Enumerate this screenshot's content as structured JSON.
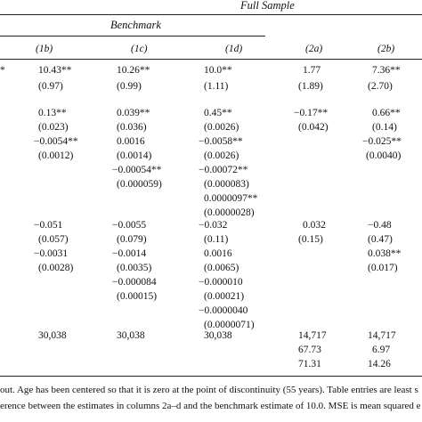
{
  "headers": {
    "full_sample": "Full Sample",
    "benchmark": "Benchmark",
    "columns": [
      "(1b)",
      "(1c)",
      "(1d)",
      "(2a)",
      "(2b)"
    ]
  },
  "left_fragment": "*",
  "rows": {
    "r1": [
      "10.43**",
      "10.26**",
      "10.0**",
      "1.77",
      "7.36**"
    ],
    "r2": [
      "(0.97)",
      "(0.99)",
      "(1.11)",
      "(1.89)",
      "(2.70)"
    ],
    "r3": [
      "0.13**",
      "0.039**",
      "0.45**",
      "−0.17**",
      "0.66**"
    ],
    "r4": [
      "(0.023)",
      "(0.036)",
      "(0.0026)",
      "(0.042)",
      "(0.14)"
    ],
    "r5": [
      "−0.0054**",
      "0.0016",
      "−0.0058**",
      "",
      "−0.025**"
    ],
    "r6": [
      "(0.0012)",
      "(0.0014)",
      "(0.0026)",
      "",
      "(0.0040)"
    ],
    "r7": [
      "",
      "−0.00054**",
      "−0.00072**",
      "",
      ""
    ],
    "r8": [
      "",
      "(0.000059)",
      "(0.000083)",
      "",
      ""
    ],
    "r9": [
      "",
      "",
      "0.0000097**",
      "",
      ""
    ],
    "r10": [
      "",
      "",
      "(0.0000028)",
      "",
      ""
    ],
    "r11": [
      "−0.051",
      "−0.0055",
      "−0.032",
      "0.032",
      "−0.48"
    ],
    "r12": [
      "(0.057)",
      "(0.079)",
      "(0.11)",
      "(0.15)",
      "(0.47)"
    ],
    "r13": [
      "−0.0031",
      "−0.0014",
      "0.0016",
      "",
      "0.038**"
    ],
    "r14": [
      "(0.0028)",
      "(0.0035)",
      "(0.0065)",
      "",
      "(0.017)"
    ],
    "r15": [
      "",
      "−0.000084",
      "−0.000010",
      "",
      ""
    ],
    "r16": [
      "",
      "(0.00015)",
      "(0.00021)",
      "",
      ""
    ],
    "r17": [
      "",
      "",
      "−0.0000040",
      "",
      ""
    ],
    "r18": [
      "",
      "",
      "(0.0000071)",
      "",
      ""
    ],
    "r19": [
      "30,038",
      "30,038",
      "30,038",
      "14,717",
      "14,717"
    ],
    "r20": [
      "",
      "",
      "",
      "67.73",
      "6.97"
    ],
    "r21": [
      "",
      "",
      "",
      "71.31",
      "14.26"
    ]
  },
  "notes": {
    "line1": "out. Age has been centered so that it is zero at the point of discontinuity (55 years). Table entries are least s",
    "line2": "erence between the estimates in columns 2a–d and the benchmark estimate of 10.0. MSE is mean squared e"
  }
}
